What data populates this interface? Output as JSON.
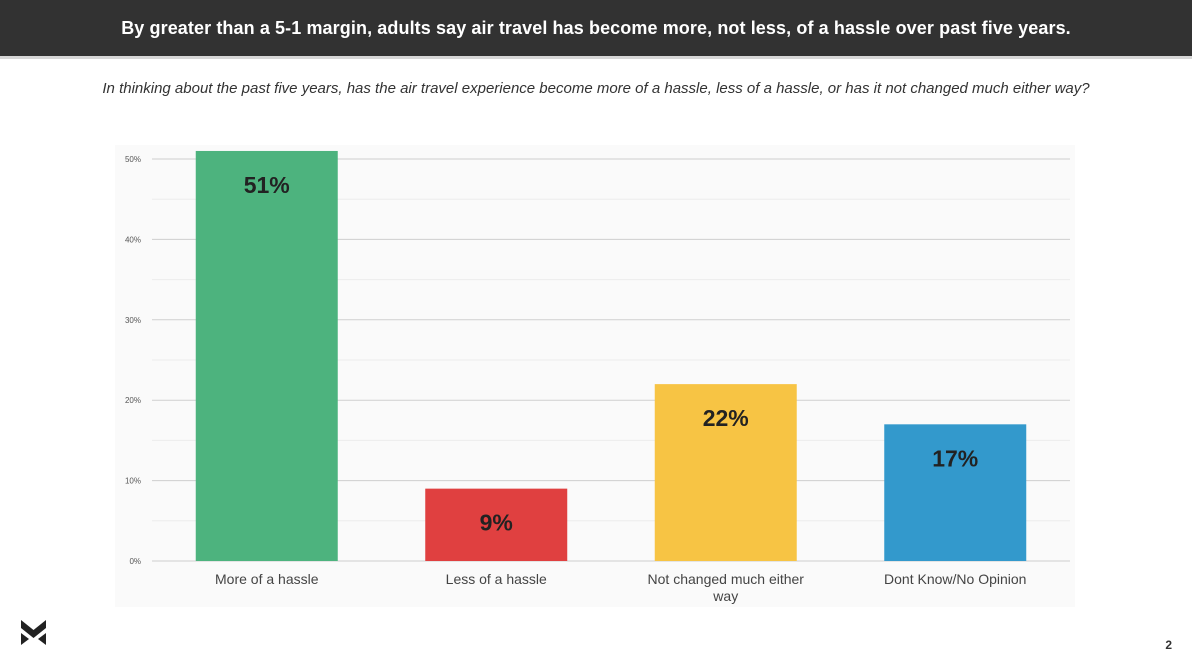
{
  "header": {
    "title": "By greater than a 5-1 margin, adults say air travel has become more, not less, of a hassle over past five years."
  },
  "question": "In thinking about the past five years, has the air travel experience become more of a hassle, less of a hassle, or has it not changed much either way?",
  "chart_data": {
    "type": "bar",
    "categories": [
      [
        "More of a hassle"
      ],
      [
        "Less of a hassle"
      ],
      [
        "Not changed much either",
        "way"
      ],
      [
        "Dont Know/No Opinion"
      ]
    ],
    "values": [
      51,
      9,
      22,
      17
    ],
    "data_labels": [
      "51%",
      "9%",
      "22%",
      "17%"
    ],
    "colors": [
      "#4db37e",
      "#e04040",
      "#f7c444",
      "#3399cc"
    ],
    "y_ticks": [
      0,
      10,
      20,
      30,
      40,
      50
    ],
    "y_tick_labels": [
      "0%",
      "10%",
      "20%",
      "30%",
      "40%",
      "50%"
    ],
    "ylim": [
      0,
      50
    ],
    "grid": true,
    "legend": "none"
  },
  "footer": {
    "page_number": "2",
    "logo_icon": "chevron-logo-icon"
  }
}
